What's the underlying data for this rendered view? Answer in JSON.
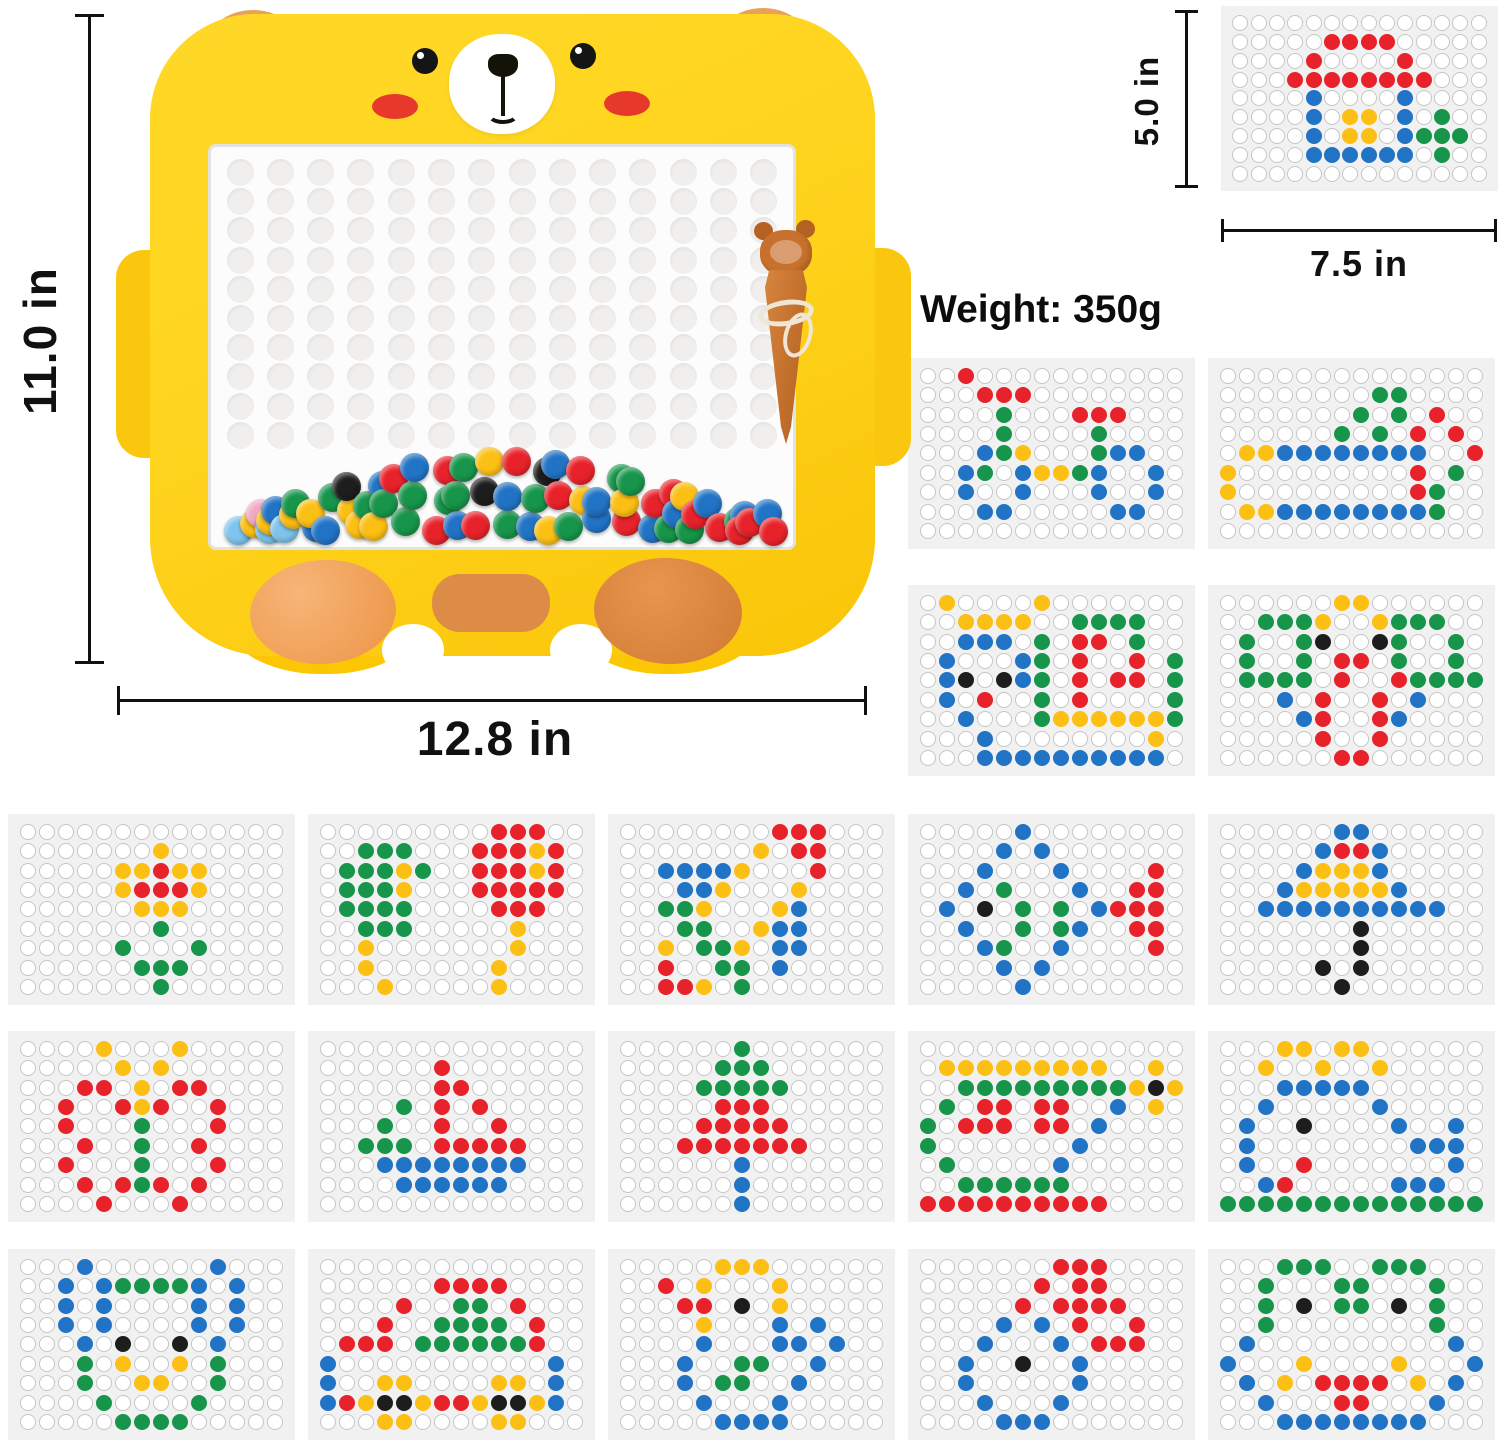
{
  "palette": {
    "R": "#e8222a",
    "G": "#17954a",
    "B": "#2173c5",
    "Y": "#fcbf13",
    "K": "#1d1d1d",
    "L": "#7ec4ec",
    "P": "#f0a9c8"
  },
  "card_style": {
    "bg": "#f1f1f1",
    "empty_fill": "#ffffff",
    "empty_stroke": "#c6c6c6"
  },
  "annotations": {
    "board_height": "11.0 in",
    "board_width": "12.8 in",
    "card_height": "5.0 in",
    "card_width": "7.5 in",
    "weight": "Weight: 350g"
  },
  "board": {
    "body_color": "#ffd41e",
    "ear_color": "#e8a158",
    "pen_color": "#c8712e",
    "grid_cols": 14,
    "grid_rows": 10,
    "bead_colors": "LYPLYBLYGBYGBYKYGBYGRGGBRGRBGGRKYGBRBGKYRBGYRBBGRYGBRRGBYGRBRGBRRBR"
  },
  "cards": {
    "grid_cols": 14,
    "grid_rows": 9,
    "items": [
      {
        "name": "house",
        "pattern": [
          "..............",
          ".....RRRR.....",
          "....R....R....",
          "...RRRRRRRR...",
          "....B....B....",
          "....B.YY.B.G..",
          "....B.YY.BGGG.",
          "....BBBBBB.G..",
          ".............."
        ]
      },
      {
        "name": "scooter",
        "pattern": [
          "..R...........",
          "...RRR........",
          "....G...RRR...",
          "....G....G....",
          "...BGY...GBB..",
          "..BG.BYYGB..B.",
          "..B..B...B..B.",
          "...BB.....BB..",
          ".............."
        ]
      },
      {
        "name": "wheelbarrow",
        "pattern": [
          "..............",
          "........GG....",
          ".......G.G.R..",
          "......G.G.R.R.",
          ".YYBBBBBBBB..R",
          "Y.........R.G.",
          "Y.........RG..",
          ".YYBBBBBBBBG..",
          ".............."
        ]
      },
      {
        "name": "fish",
        "pattern": [
          ".Y....Y.......",
          "..YYYY..GGGG..",
          "..BBB.G.RR.G..",
          ".B...BG.R..R.G",
          ".BK.KBG.R.RR.G",
          ".B.R..G.R....G",
          "..B...GYYYYYYG",
          "...B........Y.",
          "...BBBBBBBBBB."
        ]
      },
      {
        "name": "tree-with-roots",
        "pattern": [
          "......YY......",
          "..GGGY..YGGG..",
          ".G..GK..KG..G.",
          ".G..G.RR.G..G.",
          ".GGGG.R..RGGGG",
          "...B.R..R.B...",
          "....BR..RB....",
          ".....R..R.....",
          "......RR......"
        ]
      },
      {
        "name": "flower",
        "pattern": [
          "..............",
          ".......Y......",
          ".....YYRYY....",
          ".....YRRRY....",
          "......YYY.....",
          ".......G......",
          ".....G...G....",
          "......GGG.....",
          ".......G......"
        ]
      },
      {
        "name": "balloon-trees",
        "pattern": [
          ".........RRR..",
          "..GGG...RRRYR.",
          ".GGGYG..RRRYR.",
          ".GGGY...RRRRR.",
          ".GGGG....RRR..",
          "..GGG.....Y...",
          "..Y.......Y...",
          "..Y......Y....",
          "...Y.....Y...."
        ]
      },
      {
        "name": "snail",
        "pattern": [
          "........RRR...",
          ".......Y.RR...",
          "..BBBBY...R...",
          "...BBY...Y....",
          "..GGY...YB....",
          "...GG..YBB....",
          "..Y.GGY.BB....",
          "..R..GG.B.....",
          "..RRY.G......."
        ]
      },
      {
        "name": "dragonfly",
        "pattern": [
          ".....B........",
          "....B.B.......",
          "...B...B....R.",
          "..B.G...B..RR.",
          ".B.K.G.G.BRRR.",
          "..B..G.GB..RR.",
          "...BG..B....R.",
          "....B.B.......",
          ".....B........"
        ]
      },
      {
        "name": "umbrella",
        "pattern": [
          "......BB......",
          ".....BRRB.....",
          "....BYYYB.....",
          "...BYYYYYB....",
          "..BBBBBBBBBB..",
          ".......K......",
          ".......K......",
          ".....K.K......",
          "......K......."
        ]
      },
      {
        "name": "sun-flower",
        "pattern": [
          "....Y...Y.....",
          ".....Y.Y......",
          "...RR.Y.RR....",
          "..R..RYR..R...",
          "..R...G...R...",
          "...R..G..R....",
          "..R...G...R...",
          "...R.RGR.R....",
          "....R...R....."
        ]
      },
      {
        "name": "sailboat",
        "pattern": [
          "..............",
          "......R.......",
          "......RR......",
          "....G.R.R.....",
          "...G..R..R....",
          "..GGG.RRRRR...",
          "...BBBBBBBB...",
          "....BBBBBB....",
          ".............."
        ]
      },
      {
        "name": "pine-tree",
        "pattern": [
          "......G.......",
          ".....GGG......",
          "....GGGGG.....",
          ".....RRR......",
          "....RRRRR.....",
          "...RRRRRRR....",
          "......B.......",
          "......B.......",
          "......B......."
        ]
      },
      {
        "name": "dinosaur",
        "pattern": [
          "..............",
          ".YYYYYYYYY..Y.",
          "..GGGGGGGGGYKY",
          ".G.RR.RR..B.Y.",
          "G.RRR.RR.B....",
          "G.......B.....",
          ".G.....B......",
          "..GGGGGG......",
          "RRRRRRRRRR...."
        ]
      },
      {
        "name": "whale",
        "pattern": [
          "...YY.YY......",
          "..Y..Y..Y.....",
          "...BBBBB......",
          "..B.....B.....",
          ".B..K....B..B.",
          ".B........BBB.",
          ".B..R.......B.",
          "..BR.....BBB..",
          "GGGGGGGGGGGGGG"
        ]
      },
      {
        "name": "owl",
        "pattern": [
          "...B......B...",
          "..B.BGGGGB.B..",
          "..B.B....B.B..",
          "..B.B....B.B..",
          "...B.K..K.B...",
          "...G.Y..Y.G...",
          "...G..YY..G...",
          "....G....G....",
          ".....GGGG....."
        ]
      },
      {
        "name": "train",
        "pattern": [
          "..............",
          "......RRRR....",
          "....R..GG.R...",
          "...R..GGGG.R..",
          ".RRR.GGGGGGR..",
          "B...........B.",
          "B..YY....YY.B.",
          "BRYKKYRRYKKYB.",
          "...YY....YY..."
        ]
      },
      {
        "name": "swan",
        "pattern": [
          ".....YYY......",
          "..R.Y...Y.....",
          "...RR.K.Y.....",
          "....Y...B.B...",
          "....B...BB.B..",
          "...B..GG..B...",
          "...B.GG..B....",
          "....B...B.....",
          ".....BBBB....."
        ]
      },
      {
        "name": "bird",
        "pattern": [
          ".......RRR....",
          "......R.RR....",
          ".....R.RRRR...",
          "....B.B.R..R..",
          "...B...B.RRR..",
          "..B..K..B.....",
          "..B.....B.....",
          "...B...B......",
          "....BBB......."
        ]
      },
      {
        "name": "crab",
        "pattern": [
          "...GGG..GGG...",
          "..G...GG...G..",
          "..G.K.GG.K.G..",
          "..G........G..",
          ".B..........B.",
          "B...Y....Y...B",
          ".B.Y.RRRR.Y.B.",
          "..B...RR...B..",
          "...BBBBBBBB..."
        ]
      }
    ]
  }
}
